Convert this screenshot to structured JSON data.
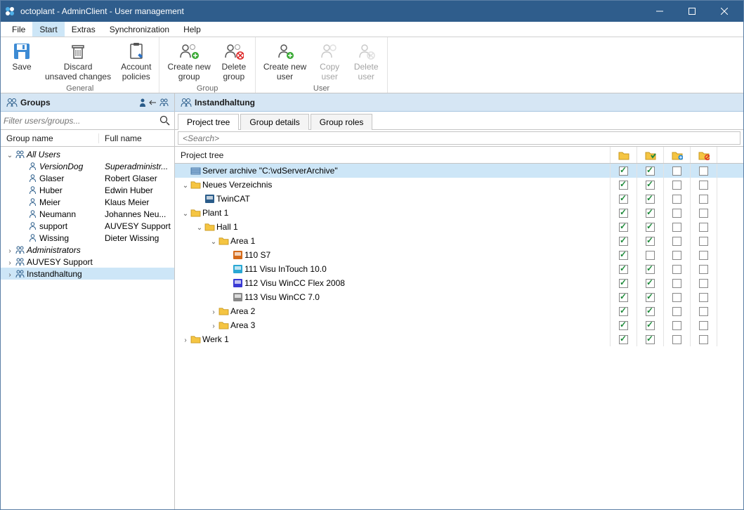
{
  "window": {
    "title": "octoplant - AdminClient - User management"
  },
  "menus": {
    "file": "File",
    "start": "Start",
    "extras": "Extras",
    "sync": "Synchronization",
    "help": "Help"
  },
  "ribbon": {
    "general": {
      "label": "General",
      "save": "Save",
      "discard": "Discard\nunsaved changes",
      "policies": "Account\npolicies"
    },
    "group": {
      "label": "Group",
      "create": "Create new\ngroup",
      "delete": "Delete\ngroup"
    },
    "user": {
      "label": "User",
      "create": "Create new\nuser",
      "copy": "Copy\nuser",
      "delete": "Delete\nuser"
    }
  },
  "left": {
    "header": "Groups",
    "filter_placeholder": "Filter users/groups...",
    "col_group": "Group name",
    "col_full": "Full name",
    "rows": [
      {
        "indent": 0,
        "kind": "group",
        "exp": "open",
        "name": "All Users",
        "full": "",
        "italic": true
      },
      {
        "indent": 1,
        "kind": "user",
        "name": "VersionDog",
        "full": "Superadministr...",
        "italic": true
      },
      {
        "indent": 1,
        "kind": "user",
        "name": "Glaser",
        "full": "Robert Glaser"
      },
      {
        "indent": 1,
        "kind": "user",
        "name": "Huber",
        "full": "Edwin Huber"
      },
      {
        "indent": 1,
        "kind": "user",
        "name": "Meier",
        "full": "Klaus Meier"
      },
      {
        "indent": 1,
        "kind": "user",
        "name": "Neumann",
        "full": "Johannes Neu..."
      },
      {
        "indent": 1,
        "kind": "user",
        "name": "support",
        "full": "AUVESY Support"
      },
      {
        "indent": 1,
        "kind": "user",
        "name": "Wissing",
        "full": "Dieter Wissing"
      },
      {
        "indent": 0,
        "kind": "group",
        "exp": "closed",
        "name": "Administrators",
        "full": "",
        "italic": true
      },
      {
        "indent": 0,
        "kind": "group",
        "exp": "closed",
        "name": "AUVESY Support",
        "full": ""
      },
      {
        "indent": 0,
        "kind": "group",
        "exp": "closed",
        "name": "Instandhaltung",
        "full": "",
        "selected": true
      }
    ]
  },
  "right": {
    "header": "Instandhaltung",
    "tabs": {
      "tree": "Project tree",
      "details": "Group details",
      "roles": "Group roles"
    },
    "search_placeholder": "<Search>",
    "pt_label": "Project tree",
    "header_icons": [
      "folder",
      "folder-check",
      "folder-plus",
      "folder-deny"
    ],
    "rows": [
      {
        "indent": 0,
        "type": "archive",
        "name": "Server archive \"C:\\vdServerArchive\"",
        "sel": true,
        "c": [
          true,
          true,
          false,
          false
        ]
      },
      {
        "indent": 0,
        "type": "folder",
        "exp": "open",
        "name": "Neues Verzeichnis",
        "c": [
          true,
          true,
          false,
          false
        ]
      },
      {
        "indent": 1,
        "type": "dev",
        "icon": "twincat",
        "name": "TwinCAT",
        "c": [
          true,
          true,
          false,
          false
        ]
      },
      {
        "indent": 0,
        "type": "folder",
        "exp": "open",
        "name": "Plant 1",
        "c": [
          true,
          true,
          false,
          false
        ]
      },
      {
        "indent": 1,
        "type": "folder",
        "exp": "open",
        "name": "Hall 1",
        "c": [
          true,
          true,
          false,
          false
        ]
      },
      {
        "indent": 2,
        "type": "folder",
        "exp": "open",
        "name": "Area 1",
        "c": [
          true,
          true,
          false,
          false
        ]
      },
      {
        "indent": 3,
        "type": "dev",
        "icon": "s7",
        "name": "110 S7",
        "c": [
          true,
          false,
          false,
          false
        ]
      },
      {
        "indent": 3,
        "type": "dev",
        "icon": "intouch",
        "name": "111 Visu InTouch 10.0",
        "c": [
          true,
          true,
          false,
          false
        ]
      },
      {
        "indent": 3,
        "type": "dev",
        "icon": "wincc",
        "name": "112 Visu WinCC Flex 2008",
        "c": [
          true,
          true,
          false,
          false
        ]
      },
      {
        "indent": 3,
        "type": "dev",
        "icon": "wincc70",
        "name": "113 Visu WinCC 7.0",
        "c": [
          true,
          true,
          false,
          false
        ]
      },
      {
        "indent": 2,
        "type": "folder",
        "exp": "closed",
        "name": "Area 2",
        "c": [
          true,
          true,
          false,
          false
        ]
      },
      {
        "indent": 2,
        "type": "folder",
        "exp": "closed",
        "name": "Area 3",
        "c": [
          true,
          true,
          false,
          false
        ]
      },
      {
        "indent": 0,
        "type": "folder",
        "exp": "closed",
        "name": "Werk 1",
        "c": [
          true,
          true,
          false,
          false
        ]
      }
    ]
  },
  "colors": {
    "titlebar": "#2f5d8c",
    "panel_header": "#d6e6f4",
    "selection": "#cde6f7",
    "folder": "#f5c542",
    "check": "#1f8a3b"
  }
}
